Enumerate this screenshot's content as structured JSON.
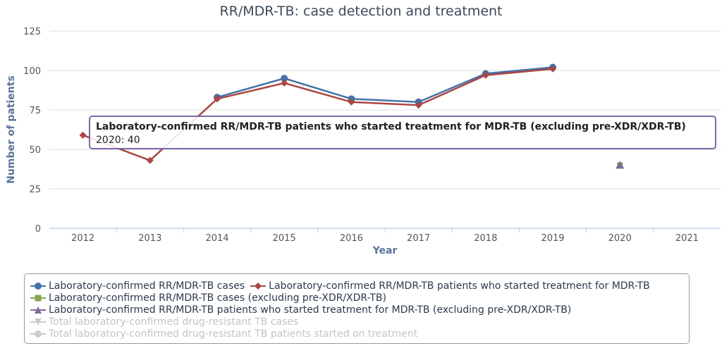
{
  "chart_data": {
    "type": "line",
    "title": "RR/MDR-TB: case detection and treatment",
    "xlabel": "Year",
    "ylabel": "Number of patients",
    "categories": [
      "2012",
      "2013",
      "2014",
      "2015",
      "2016",
      "2017",
      "2018",
      "2019",
      "2020",
      "2021"
    ],
    "y_ticks": [
      0,
      25,
      50,
      75,
      100,
      125
    ],
    "ylim": [
      0,
      125
    ],
    "grid": true,
    "legend_position": "bottom",
    "series": [
      {
        "name": "Laboratory-confirmed RR/MDR-TB cases",
        "color": "#4572a7",
        "marker": "circle",
        "visible": true,
        "values": [
          null,
          null,
          83,
          95,
          82,
          80,
          98,
          102,
          null,
          null
        ]
      },
      {
        "name": "Laboratory-confirmed RR/MDR-TB patients who started treatment for MDR-TB",
        "color": "#aa4643",
        "marker": "diamond",
        "visible": true,
        "values": [
          59,
          43,
          82,
          92,
          80,
          78,
          97,
          101,
          null,
          null
        ]
      },
      {
        "name": "Laboratory-confirmed RR/MDR-TB cases (excluding pre-XDR/XDR-TB)",
        "color": "#89a54e",
        "marker": "square",
        "visible": true,
        "values": [
          null,
          null,
          null,
          null,
          null,
          null,
          null,
          null,
          40,
          null
        ]
      },
      {
        "name": "Laboratory-confirmed RR/MDR-TB patients who started treatment for MDR-TB (excluding pre-XDR/XDR-TB)",
        "color": "#80699b",
        "marker": "triangle",
        "visible": true,
        "values": [
          null,
          null,
          null,
          null,
          null,
          null,
          null,
          null,
          40,
          null
        ]
      },
      {
        "name": "Total laboratory-confirmed drug-resistant TB cases",
        "color": "#cccccc",
        "marker": "triangle-down",
        "visible": false,
        "values": []
      },
      {
        "name": "Total laboratory-confirmed drug-resistant TB patients started on treatment",
        "color": "#cccccc",
        "marker": "circle",
        "visible": false,
        "values": []
      }
    ],
    "tooltip": {
      "series": "Laboratory-confirmed RR/MDR-TB patients who started treatment for MDR-TB (excluding pre-XDR/XDR-TB)",
      "text": "2020: 40"
    }
  },
  "legend": {
    "row1_item1": "Laboratory-confirmed RR/MDR-TB cases",
    "row1_item2": "Laboratory-confirmed RR/MDR-TB patients who started treatment for MDR-TB",
    "row2": "Laboratory-confirmed RR/MDR-TB cases (excluding pre-XDR/XDR-TB)",
    "row3": "Laboratory-confirmed RR/MDR-TB patients who started treatment for MDR-TB (excluding pre-XDR/XDR-TB)",
    "row4": "Total laboratory-confirmed drug-resistant TB cases",
    "row5": "Total laboratory-confirmed drug-resistant TB patients started on treatment"
  }
}
